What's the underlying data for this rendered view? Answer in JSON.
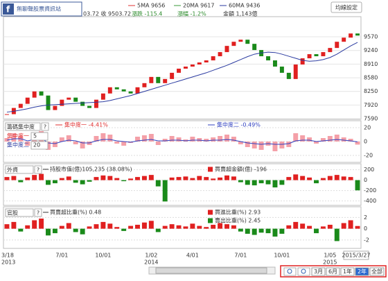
{
  "header": {
    "badge": "無聊聲股票資訊站",
    "quote": "03.72 收 9503.72",
    "ma_legend": [
      {
        "text": "5MA 9656",
        "color": "#e03030"
      },
      {
        "text": "20MA 9617",
        "color": "#3a9a3a"
      },
      {
        "text": "60MA 9436",
        "color": "#2a3aa0"
      }
    ],
    "stats": [
      {
        "text": "漲跌 -115.4",
        "color": "#2a8a2a"
      },
      {
        "text": "漲幅 -1.2%",
        "color": "#2a8a2a"
      },
      {
        "text": "金額 1,143億",
        "color": "#333"
      }
    ],
    "button": "均線設定"
  },
  "chart_data": [
    {
      "type": "price",
      "up_color": "#e02020",
      "down_color": "#1a8a1a",
      "categories": [
        "3/18",
        null,
        null,
        null,
        null,
        null,
        null,
        null,
        "7/01",
        null,
        null,
        null,
        null,
        null,
        "10/01",
        null,
        null,
        null,
        null,
        null,
        null,
        "1/02",
        null,
        null,
        null,
        null,
        null,
        "4/01",
        null,
        null,
        null,
        null,
        null,
        null,
        "7/01",
        null,
        null,
        null,
        null,
        null,
        "10/01",
        null,
        null,
        null,
        null,
        null,
        null,
        "1/05",
        null,
        null,
        null,
        null
      ],
      "year_labels": [
        "2013",
        null,
        null,
        null,
        null,
        null,
        null,
        null,
        null,
        null,
        null,
        null,
        null,
        null,
        null,
        null,
        null,
        null,
        null,
        null,
        null,
        "2014",
        null,
        null,
        null,
        null,
        null,
        null,
        null,
        null,
        null,
        null,
        null,
        null,
        null,
        null,
        null,
        null,
        null,
        null,
        null,
        null,
        null,
        null,
        null,
        null,
        null,
        "2015",
        null,
        null,
        null,
        null
      ],
      "last_date": "2015/3/27",
      "values": [
        7700,
        7850,
        7950,
        8100,
        8250,
        8150,
        7800,
        7900,
        8050,
        8100,
        8000,
        7900,
        7850,
        8050,
        8200,
        8350,
        8300,
        8250,
        8200,
        8350,
        8450,
        8600,
        8450,
        8550,
        8700,
        8800,
        8850,
        8900,
        8950,
        9000,
        9100,
        9200,
        9350,
        9450,
        9500,
        9400,
        9250,
        9100,
        9000,
        8850,
        8700,
        8550,
        8900,
        9050,
        9150,
        9100,
        9200,
        9300,
        9450,
        9550,
        9650,
        9600
      ],
      "ma60": {
        "color": "#2a3aa0",
        "values": [
          7750,
          7770,
          7800,
          7830,
          7870,
          7900,
          7920,
          7930,
          7940,
          7950,
          7960,
          7970,
          7980,
          7990,
          8000,
          8030,
          8070,
          8110,
          8150,
          8200,
          8250,
          8300,
          8350,
          8400,
          8450,
          8500,
          8550,
          8600,
          8650,
          8700,
          8760,
          8820,
          8880,
          8950,
          9020,
          9090,
          9150,
          9180,
          9200,
          9190,
          9150,
          9100,
          9050,
          9000,
          8980,
          8990,
          9020,
          9070,
          9150,
          9250,
          9350,
          9436
        ]
      },
      "ylim": [
        7575,
        10040
      ],
      "yticks": [
        9570,
        9240,
        8910,
        8580,
        8250,
        7920,
        7590
      ],
      "grid": true
    },
    {
      "type": "bar",
      "selector": "籌碼集中度",
      "help": "?",
      "inputs": [
        {
          "label": "集中度一",
          "value": 5,
          "color": "#e03030"
        },
        {
          "label": "集中度二",
          "value": 20,
          "color": "#2a3aa0"
        }
      ],
      "series": [
        {
          "name": "集中度一 -4.41%",
          "kind": "bar",
          "color": "#f4a0a8",
          "neg_color": "#f4a0a8",
          "values": [
            5,
            12,
            8,
            -6,
            10,
            15,
            -12,
            -8,
            6,
            9,
            -4,
            -10,
            -5,
            8,
            12,
            10,
            -3,
            -6,
            -2,
            7,
            9,
            11,
            -5,
            4,
            8,
            6,
            3,
            7,
            5,
            4,
            6,
            8,
            10,
            7,
            -4,
            -8,
            -10,
            -12,
            -6,
            -14,
            -10,
            -8,
            12,
            9,
            6,
            -3,
            5,
            8,
            10,
            6,
            4,
            -4.41
          ]
        },
        {
          "name": "集中度二 -0.49%",
          "kind": "line",
          "color": "#3040c0",
          "values": [
            2,
            4,
            4,
            1,
            3,
            5,
            -2,
            -3,
            0,
            2,
            1,
            -2,
            -2,
            1,
            3,
            3,
            1,
            0,
            -1,
            1,
            2,
            3,
            1,
            1,
            2,
            2,
            1,
            2,
            2,
            1,
            2,
            2,
            3,
            2,
            0,
            -2,
            -3,
            -4,
            -3,
            -4,
            -4,
            -3,
            1,
            2,
            2,
            0,
            1,
            2,
            3,
            2,
            1,
            -0.49
          ]
        }
      ],
      "ylim": [
        -30,
        30
      ],
      "yticks": [
        20,
        0,
        -20
      ]
    },
    {
      "type": "bar",
      "selector": "外資",
      "help": "?",
      "legend": [
        {
          "text": "持股市值(億)105,235 (38.08%)",
          "kind": "line",
          "color": "#333"
        },
        {
          "text": "買賣超金額(億) -196",
          "kind": "square",
          "color": "#e02020"
        }
      ],
      "series": [
        {
          "kind": "bar",
          "color": "#e02020",
          "neg_color": "#1a8a1a",
          "values": [
            60,
            80,
            -40,
            50,
            100,
            120,
            -90,
            -60,
            40,
            70,
            -50,
            -80,
            -30,
            60,
            90,
            80,
            40,
            -20,
            30,
            60,
            80,
            100,
            -120,
            -410,
            50,
            60,
            70,
            40,
            80,
            60,
            30,
            50,
            90,
            70,
            -40,
            -90,
            -100,
            -60,
            -80,
            -140,
            -90,
            60,
            110,
            80,
            50,
            -60,
            40,
            80,
            100,
            70,
            60,
            -196
          ]
        }
      ],
      "ylim": [
        -485,
        315
      ],
      "yticks": [
        200,
        0,
        -200,
        -400
      ]
    },
    {
      "type": "bar",
      "selector": "官股",
      "help": "?",
      "legend": [
        {
          "text": "買賣超比重(%) 0.48",
          "kind": "line",
          "color": "#333"
        },
        {
          "text": "買進比重(%) 2.93",
          "kind": "square",
          "color": "#e02020"
        },
        {
          "text": "賣出比重(%) 2.45",
          "kind": "square",
          "color": "#1a8a1a"
        }
      ],
      "series": [
        {
          "kind": "bar",
          "color": "#e02020",
          "neg_color": "#1a8a1a",
          "values": [
            0.8,
            1.2,
            -0.5,
            0.6,
            1.5,
            1.8,
            -1.2,
            -0.8,
            0.5,
            1,
            -0.6,
            -1,
            0.4,
            0.8,
            1.2,
            0.9,
            0.3,
            -0.4,
            0.5,
            0.7,
            1.1,
            1.4,
            -0.6,
            0.5,
            0.8,
            0.6,
            0.4,
            0.9,
            0.5,
            0.3,
            0.7,
            1,
            0.8,
            0.6,
            -0.5,
            -0.9,
            -1.1,
            -0.7,
            -0.8,
            -1.4,
            -0.9,
            0.6,
            1.2,
            0.9,
            0.5,
            -0.8,
            0.4,
            0.7,
            -2.2,
            1,
            1.5,
            0.48
          ]
        }
      ],
      "ylim": [
        -3.5,
        3.9
      ],
      "yticks": [
        2,
        0,
        -2
      ]
    }
  ],
  "controls": {
    "buttons": [
      "3月",
      "6月",
      "1年",
      "2年",
      "全部"
    ],
    "selected": "2年"
  }
}
